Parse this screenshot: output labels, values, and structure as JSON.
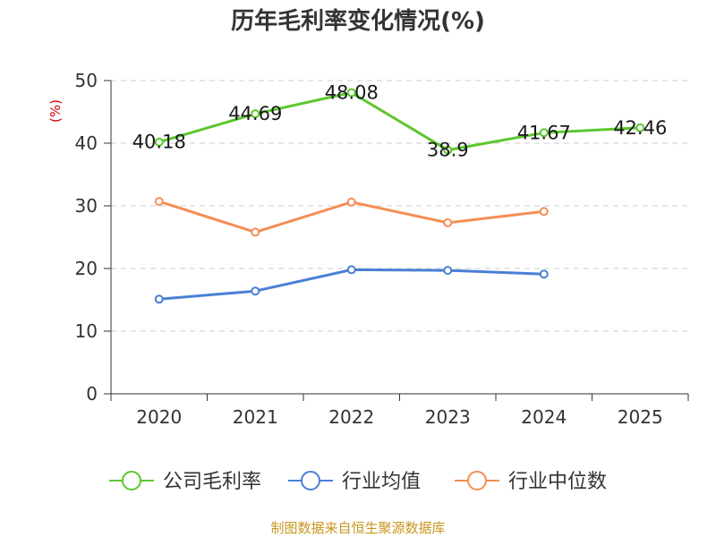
{
  "chart_data": {
    "type": "line",
    "title": "历年毛利率变化情况(%)",
    "ylabel": "(%)",
    "xlabel": "",
    "categories": [
      "2020",
      "2021",
      "2022",
      "2023",
      "2024",
      "2025"
    ],
    "ylim": [
      0,
      50
    ],
    "yticks": [
      0,
      10,
      20,
      30,
      40,
      50
    ],
    "grid": true,
    "legend_position": "bottom",
    "series": [
      {
        "name": "公司毛利率",
        "color": "#5cc72d",
        "values": [
          40.18,
          44.69,
          48.08,
          38.9,
          41.67,
          42.46
        ],
        "labels": [
          "40.18",
          "44.69",
          "48.08",
          "38.9",
          "41.67",
          "42.46"
        ]
      },
      {
        "name": "行业均值",
        "color": "#4a7fd6",
        "values": [
          15.1,
          16.4,
          19.8,
          19.7,
          19.1,
          null
        ]
      },
      {
        "name": "行业中位数",
        "color": "#f58e55",
        "values": [
          30.7,
          25.8,
          30.6,
          27.3,
          29.1,
          null
        ]
      }
    ]
  },
  "footer": {
    "source": "制图数据来自恒生聚源数据库"
  }
}
